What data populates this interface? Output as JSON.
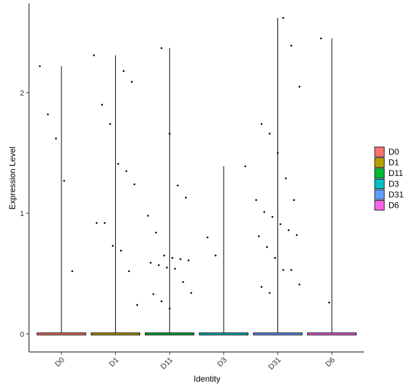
{
  "chart_data": {
    "type": "violin",
    "x_label": "Identity",
    "y_label": "Expression Level",
    "categories": [
      "D0",
      "D1",
      "D11",
      "D3",
      "D31",
      "D6"
    ],
    "ylim": [
      -0.15,
      2.74
    ],
    "yticks": [
      0,
      1,
      2
    ],
    "series": [
      {
        "name": "D0",
        "color": "#F8766D",
        "values": [
          2.22,
          1.82,
          1.62,
          1.27,
          0.52
        ]
      },
      {
        "name": "D1",
        "color": "#B79F00",
        "values": [
          2.18,
          2.09,
          2.31,
          1.9,
          1.74,
          1.41,
          1.35,
          1.24,
          0.92,
          0.92,
          0.73,
          0.69,
          0.52,
          0.24
        ]
      },
      {
        "name": "D11",
        "color": "#00BA38",
        "values": [
          2.37,
          1.66,
          1.23,
          1.13,
          0.98,
          0.84,
          0.65,
          0.63,
          0.62,
          0.61,
          0.59,
          0.57,
          0.55,
          0.54,
          0.43,
          0.34,
          0.33,
          0.27,
          0.21
        ]
      },
      {
        "name": "D3",
        "color": "#00BFC4",
        "values": [
          1.39,
          0.8,
          0.65
        ]
      },
      {
        "name": "D31",
        "color": "#619CFF",
        "values": [
          2.62,
          2.39,
          2.05,
          1.74,
          1.66,
          1.5,
          1.29,
          1.11,
          1.11,
          1.01,
          0.97,
          0.91,
          0.86,
          0.82,
          0.81,
          0.72,
          0.63,
          0.53,
          0.53,
          0.41,
          0.39,
          0.34
        ]
      },
      {
        "name": "D6",
        "color": "#F564E3",
        "values": [
          2.45,
          0.26
        ]
      }
    ]
  }
}
